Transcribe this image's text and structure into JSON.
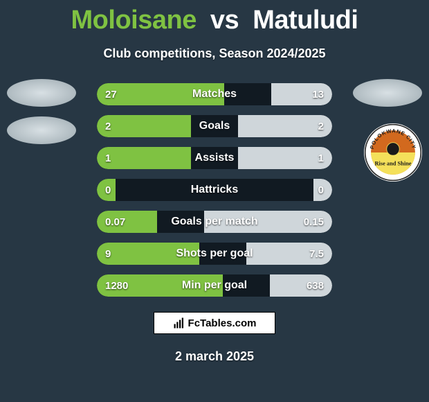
{
  "colors": {
    "background": "#273744",
    "row_bg": "#111a22",
    "player_a": "#7fc242",
    "player_b": "#ffffff",
    "bar_b": "#cfd6da"
  },
  "title": {
    "player_a": "Moloisane",
    "vs": "vs",
    "player_b": "Matuludi"
  },
  "subtitle": "Club competitions, Season 2024/2025",
  "stats": [
    {
      "label": "Matches",
      "a": "27",
      "b": "13",
      "a_num": 27,
      "b_num": 13
    },
    {
      "label": "Goals",
      "a": "2",
      "b": "2",
      "a_num": 2,
      "b_num": 2
    },
    {
      "label": "Assists",
      "a": "1",
      "b": "1",
      "a_num": 1,
      "b_num": 1
    },
    {
      "label": "Hattricks",
      "a": "0",
      "b": "0",
      "a_num": 0,
      "b_num": 0
    },
    {
      "label": "Goals per match",
      "a": "0.07",
      "b": "0.15",
      "a_num": 0.07,
      "b_num": 0.15
    },
    {
      "label": "Shots per goal",
      "a": "9",
      "b": "7.5",
      "a_num": 9,
      "b_num": 7.5
    },
    {
      "label": "Min per goal",
      "a": "1280",
      "b": "638",
      "a_num": 1280,
      "b_num": 638
    }
  ],
  "bar_min_pct": 8,
  "bar_max_total_pct": 80,
  "badge": {
    "top_text": "POLOKWANE CITY",
    "bottom_text": "Rise and Shine",
    "colors": {
      "ring": "#ffffff",
      "ring_stroke": "#2a2a2a",
      "top_fill": "#d2691e",
      "bottom_fill": "#f4e05a",
      "text": "#1a1a1a"
    }
  },
  "footer_brand": "FcTables.com",
  "date": "2 march 2025"
}
